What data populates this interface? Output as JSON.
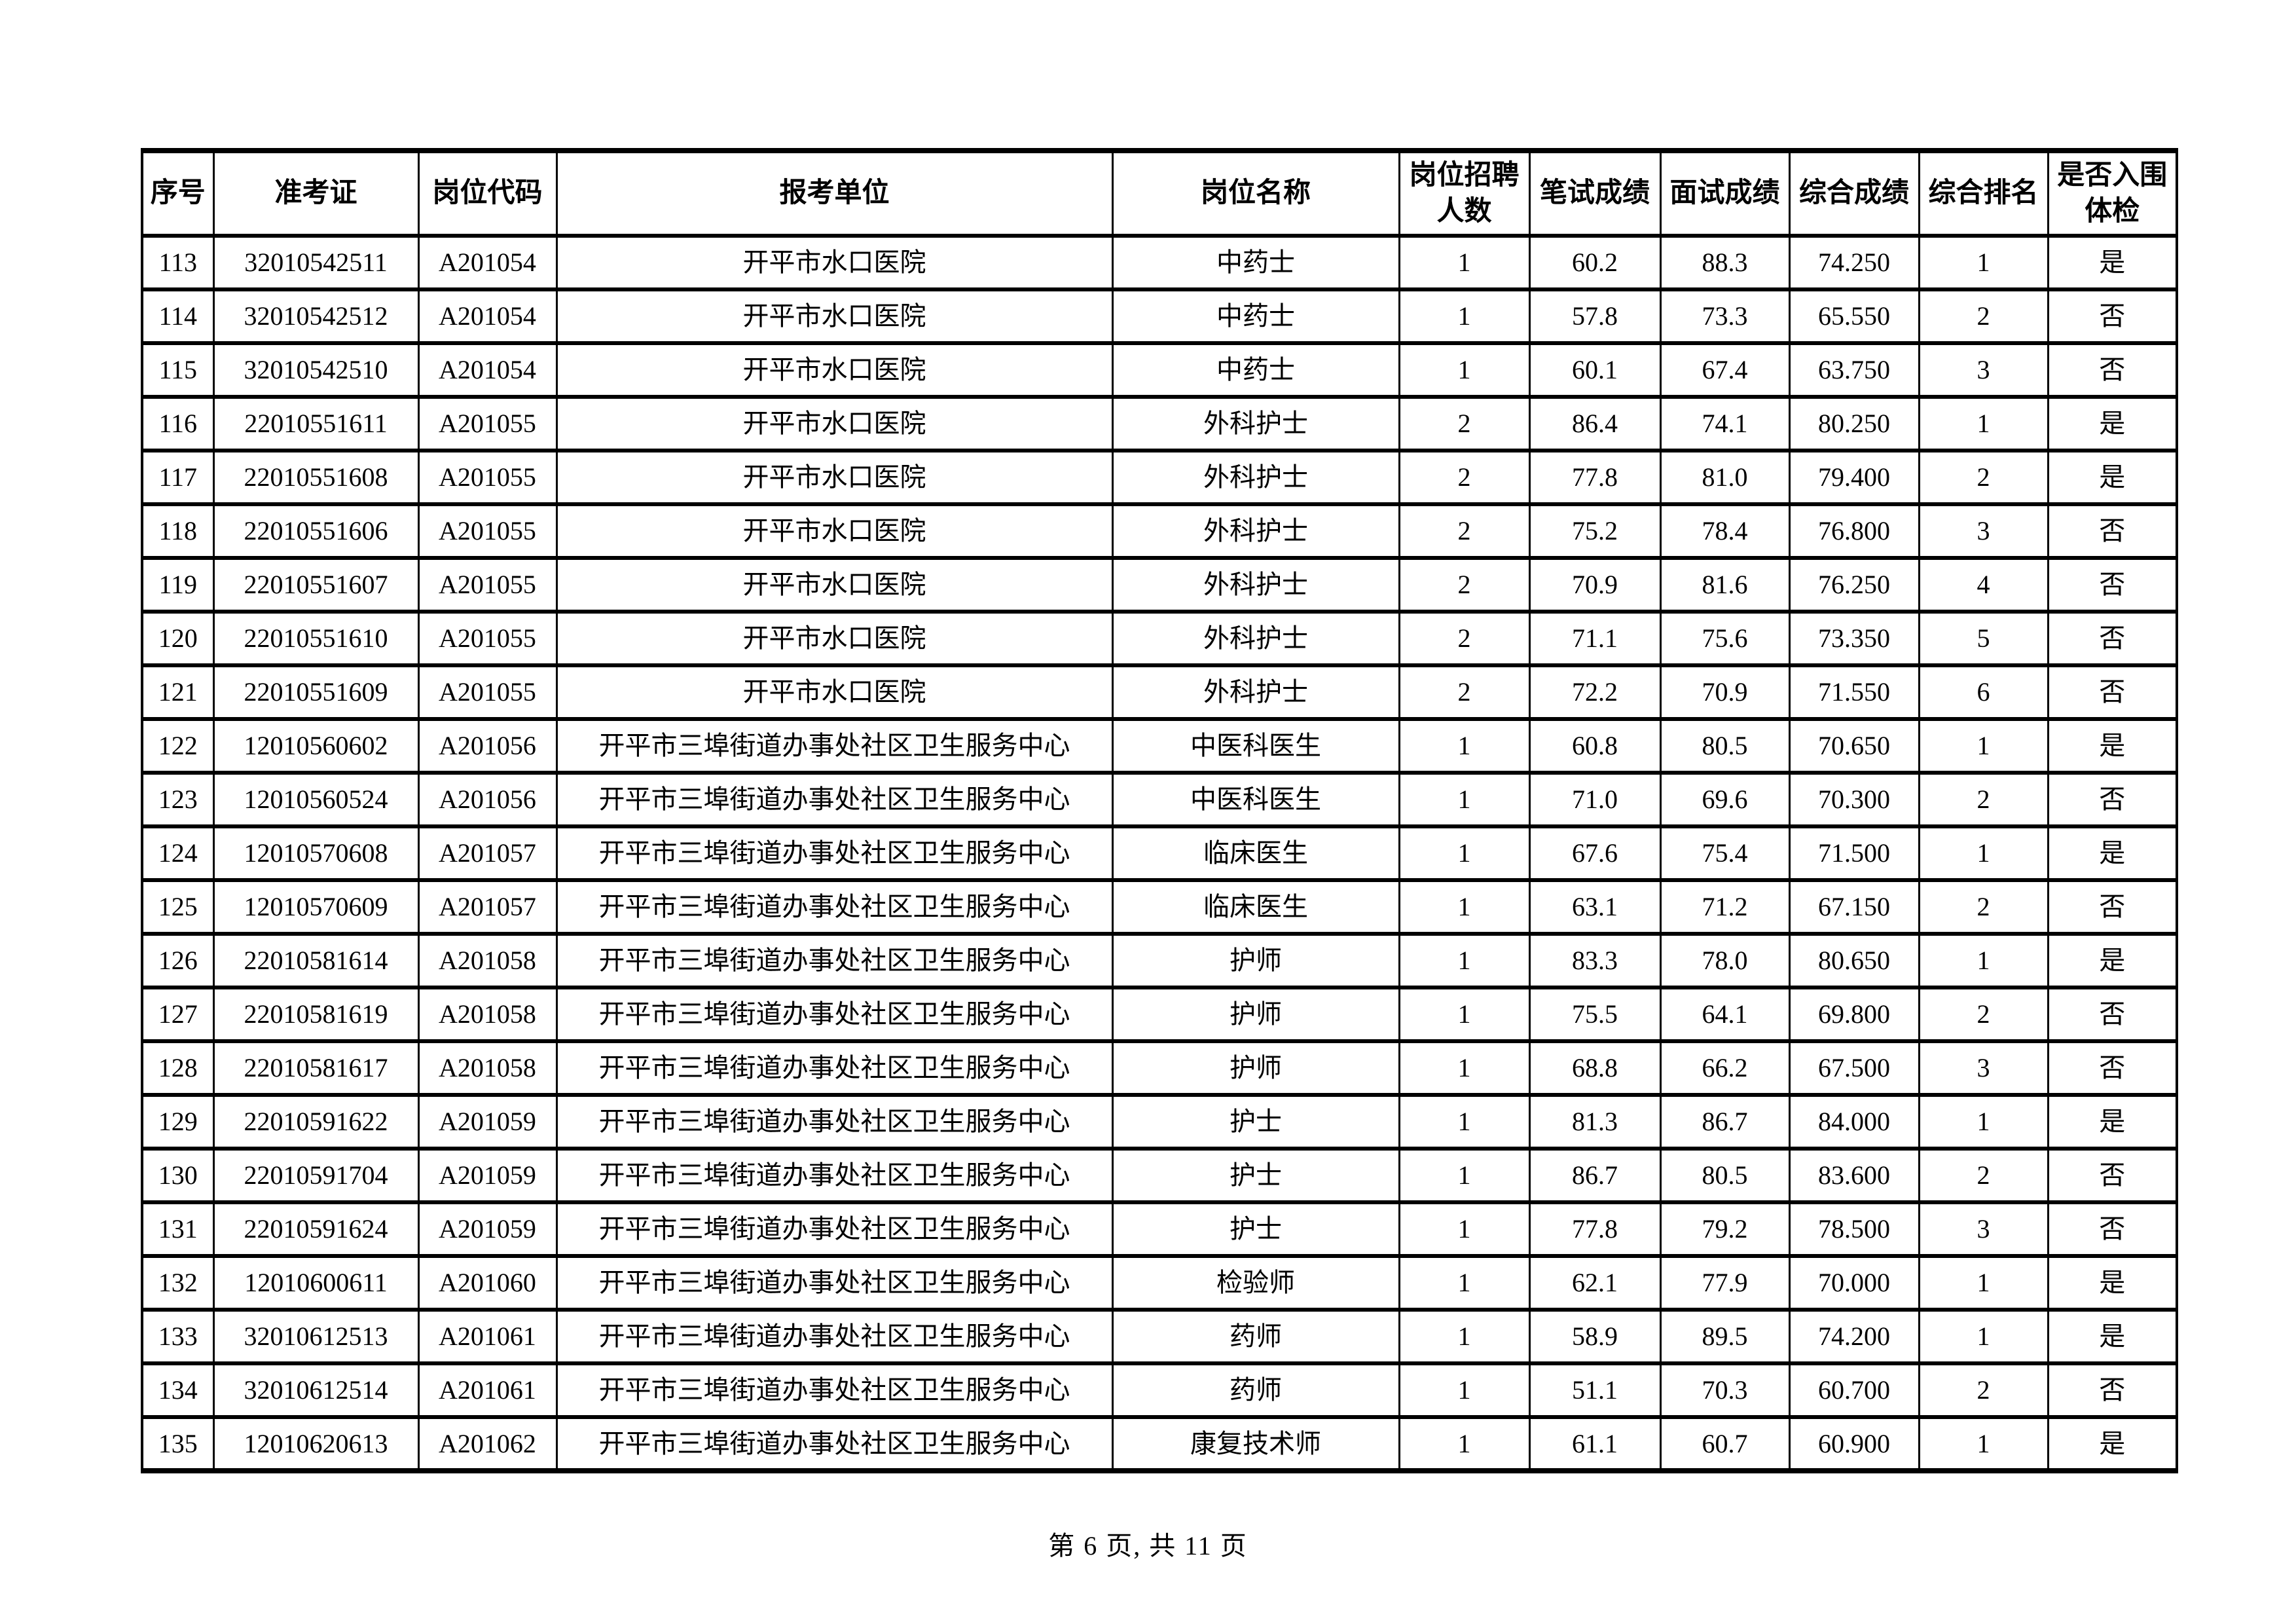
{
  "page": {
    "footer": "第 6 页, 共 11 页"
  },
  "table": {
    "columns": [
      "序号",
      "准考证",
      "岗位代码",
      "报考单位",
      "岗位名称",
      "岗位招聘人数",
      "笔试成绩",
      "面试成绩",
      "综合成绩",
      "综合排名",
      "是否入围体检"
    ],
    "rows": [
      [
        "113",
        "32010542511",
        "A201054",
        "开平市水口医院",
        "中药士",
        "1",
        "60.2",
        "88.3",
        "74.250",
        "1",
        "是"
      ],
      [
        "114",
        "32010542512",
        "A201054",
        "开平市水口医院",
        "中药士",
        "1",
        "57.8",
        "73.3",
        "65.550",
        "2",
        "否"
      ],
      [
        "115",
        "32010542510",
        "A201054",
        "开平市水口医院",
        "中药士",
        "1",
        "60.1",
        "67.4",
        "63.750",
        "3",
        "否"
      ],
      [
        "116",
        "22010551611",
        "A201055",
        "开平市水口医院",
        "外科护士",
        "2",
        "86.4",
        "74.1",
        "80.250",
        "1",
        "是"
      ],
      [
        "117",
        "22010551608",
        "A201055",
        "开平市水口医院",
        "外科护士",
        "2",
        "77.8",
        "81.0",
        "79.400",
        "2",
        "是"
      ],
      [
        "118",
        "22010551606",
        "A201055",
        "开平市水口医院",
        "外科护士",
        "2",
        "75.2",
        "78.4",
        "76.800",
        "3",
        "否"
      ],
      [
        "119",
        "22010551607",
        "A201055",
        "开平市水口医院",
        "外科护士",
        "2",
        "70.9",
        "81.6",
        "76.250",
        "4",
        "否"
      ],
      [
        "120",
        "22010551610",
        "A201055",
        "开平市水口医院",
        "外科护士",
        "2",
        "71.1",
        "75.6",
        "73.350",
        "5",
        "否"
      ],
      [
        "121",
        "22010551609",
        "A201055",
        "开平市水口医院",
        "外科护士",
        "2",
        "72.2",
        "70.9",
        "71.550",
        "6",
        "否"
      ],
      [
        "122",
        "12010560602",
        "A201056",
        "开平市三埠街道办事处社区卫生服务中心",
        "中医科医生",
        "1",
        "60.8",
        "80.5",
        "70.650",
        "1",
        "是"
      ],
      [
        "123",
        "12010560524",
        "A201056",
        "开平市三埠街道办事处社区卫生服务中心",
        "中医科医生",
        "1",
        "71.0",
        "69.6",
        "70.300",
        "2",
        "否"
      ],
      [
        "124",
        "12010570608",
        "A201057",
        "开平市三埠街道办事处社区卫生服务中心",
        "临床医生",
        "1",
        "67.6",
        "75.4",
        "71.500",
        "1",
        "是"
      ],
      [
        "125",
        "12010570609",
        "A201057",
        "开平市三埠街道办事处社区卫生服务中心",
        "临床医生",
        "1",
        "63.1",
        "71.2",
        "67.150",
        "2",
        "否"
      ],
      [
        "126",
        "22010581614",
        "A201058",
        "开平市三埠街道办事处社区卫生服务中心",
        "护师",
        "1",
        "83.3",
        "78.0",
        "80.650",
        "1",
        "是"
      ],
      [
        "127",
        "22010581619",
        "A201058",
        "开平市三埠街道办事处社区卫生服务中心",
        "护师",
        "1",
        "75.5",
        "64.1",
        "69.800",
        "2",
        "否"
      ],
      [
        "128",
        "22010581617",
        "A201058",
        "开平市三埠街道办事处社区卫生服务中心",
        "护师",
        "1",
        "68.8",
        "66.2",
        "67.500",
        "3",
        "否"
      ],
      [
        "129",
        "22010591622",
        "A201059",
        "开平市三埠街道办事处社区卫生服务中心",
        "护士",
        "1",
        "81.3",
        "86.7",
        "84.000",
        "1",
        "是"
      ],
      [
        "130",
        "22010591704",
        "A201059",
        "开平市三埠街道办事处社区卫生服务中心",
        "护士",
        "1",
        "86.7",
        "80.5",
        "83.600",
        "2",
        "否"
      ],
      [
        "131",
        "22010591624",
        "A201059",
        "开平市三埠街道办事处社区卫生服务中心",
        "护士",
        "1",
        "77.8",
        "79.2",
        "78.500",
        "3",
        "否"
      ],
      [
        "132",
        "12010600611",
        "A201060",
        "开平市三埠街道办事处社区卫生服务中心",
        "检验师",
        "1",
        "62.1",
        "77.9",
        "70.000",
        "1",
        "是"
      ],
      [
        "133",
        "32010612513",
        "A201061",
        "开平市三埠街道办事处社区卫生服务中心",
        "药师",
        "1",
        "58.9",
        "89.5",
        "74.200",
        "1",
        "是"
      ],
      [
        "134",
        "32010612514",
        "A201061",
        "开平市三埠街道办事处社区卫生服务中心",
        "药师",
        "1",
        "51.1",
        "70.3",
        "60.700",
        "2",
        "否"
      ],
      [
        "135",
        "12010620613",
        "A201062",
        "开平市三埠街道办事处社区卫生服务中心",
        "康复技术师",
        "1",
        "61.1",
        "60.7",
        "60.900",
        "1",
        "是"
      ]
    ]
  }
}
